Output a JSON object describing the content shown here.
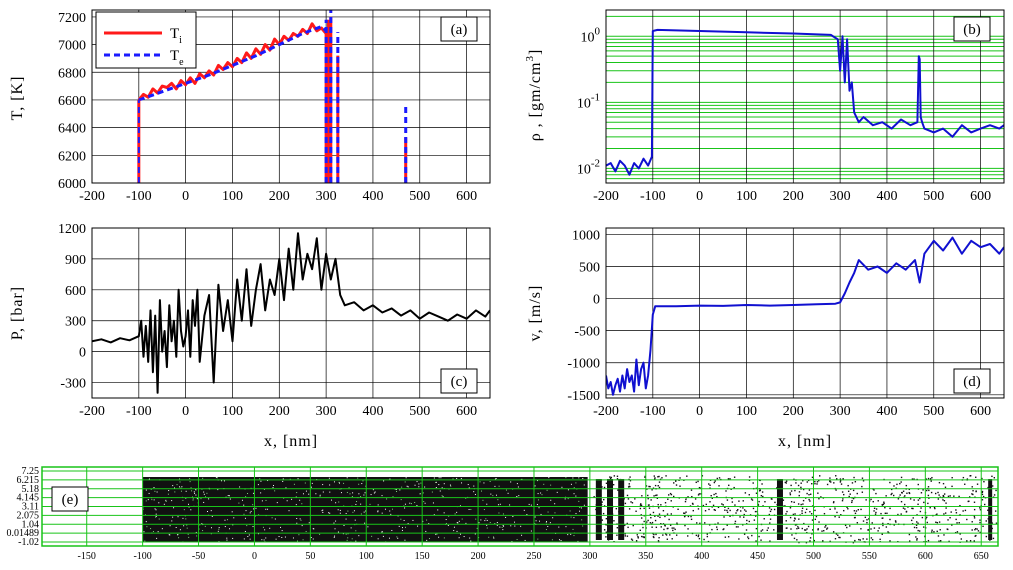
{
  "chart_data": [
    {
      "id": "a",
      "type": "line",
      "panel_label": "(a)",
      "ylabel": "T, [K]",
      "xlabel": "",
      "xlim": [
        -200,
        650
      ],
      "ylim": [
        6000,
        7250
      ],
      "xticks": [
        -200,
        -100,
        0,
        100,
        200,
        300,
        400,
        500,
        600
      ],
      "yticks": [
        6000,
        6200,
        6400,
        6600,
        6800,
        7000,
        7200
      ],
      "grid": true,
      "legend_position": "top-left",
      "series": [
        {
          "name": "Ti",
          "legend_main": "T",
          "legend_sub": "i",
          "color": "#ff1a1a",
          "style": "solid",
          "x": [
            -100,
            -90,
            -80,
            -70,
            -60,
            -50,
            -40,
            -30,
            -20,
            -10,
            0,
            10,
            20,
            30,
            40,
            50,
            60,
            70,
            80,
            90,
            100,
            110,
            120,
            130,
            140,
            150,
            160,
            170,
            180,
            190,
            200,
            210,
            220,
            230,
            240,
            250,
            260,
            270,
            280,
            290,
            300
          ],
          "y": [
            6600,
            6640,
            6620,
            6680,
            6650,
            6700,
            6690,
            6720,
            6680,
            6740,
            6710,
            6760,
            6720,
            6790,
            6760,
            6810,
            6780,
            6850,
            6820,
            6870,
            6840,
            6900,
            6870,
            6940,
            6900,
            6970,
            6930,
            7000,
            6960,
            7040,
            7000,
            7060,
            7030,
            7080,
            7060,
            7110,
            7080,
            7150,
            7100,
            7120,
            7080
          ],
          "spikes": [
            {
              "x": 300,
              "y": 7100
            },
            {
              "x": 305,
              "y": 7180
            },
            {
              "x": 310,
              "y": 7200
            },
            {
              "x": 325,
              "y": 6920
            },
            {
              "x": 470,
              "y": 6330
            }
          ]
        },
        {
          "name": "Te",
          "legend_main": "T",
          "legend_sub": "e",
          "color": "#1a1aff",
          "style": "dashed",
          "x": [
            -100,
            -50,
            0,
            50,
            100,
            150,
            200,
            250,
            290,
            300
          ],
          "y": [
            6600,
            6660,
            6720,
            6780,
            6850,
            6920,
            7000,
            7080,
            7130,
            7100
          ],
          "spikes": [
            {
              "x": 300,
              "y": 7180
            },
            {
              "x": 310,
              "y": 7250
            },
            {
              "x": 325,
              "y": 7090
            },
            {
              "x": 470,
              "y": 6560
            }
          ]
        }
      ]
    },
    {
      "id": "b",
      "type": "line",
      "panel_label": "(b)",
      "ylabel": "ρ , [gm/cm",
      "ylabel_sup": "3",
      "ylabel_close": "]",
      "xlabel": "",
      "log_scale_y": true,
      "xlim": [
        -200,
        650
      ],
      "ylim": [
        0.006,
        2.5
      ],
      "xticks": [
        -200,
        -100,
        0,
        100,
        200,
        300,
        400,
        500,
        600
      ],
      "yticks": [
        {
          "value": 1,
          "base": "10",
          "exp": "0"
        },
        {
          "value": 0.1,
          "base": "10",
          "exp": "-1"
        },
        {
          "value": 0.01,
          "base": "10",
          "exp": "-2"
        }
      ],
      "grid": "green minor grid",
      "series": [
        {
          "name": "",
          "color": "#1010d0",
          "style": "solid",
          "x": [
            -200,
            -190,
            -180,
            -170,
            -160,
            -150,
            -140,
            -130,
            -120,
            -110,
            -102,
            -100,
            -90,
            0,
            100,
            200,
            280,
            295,
            300,
            305,
            310,
            315,
            320,
            325,
            330,
            340,
            350,
            370,
            390,
            410,
            430,
            450,
            465,
            468,
            470,
            472,
            475,
            480,
            500,
            520,
            540,
            560,
            580,
            600,
            620,
            640,
            650
          ],
          "y": [
            0.011,
            0.012,
            0.009,
            0.013,
            0.011,
            0.008,
            0.012,
            0.01,
            0.014,
            0.011,
            0.015,
            1.2,
            1.25,
            1.2,
            1.15,
            1.1,
            1.05,
            0.9,
            0.3,
            1.0,
            0.2,
            0.9,
            0.15,
            0.2,
            0.07,
            0.05,
            0.06,
            0.045,
            0.05,
            0.04,
            0.055,
            0.045,
            0.05,
            0.5,
            0.45,
            0.06,
            0.05,
            0.04,
            0.035,
            0.04,
            0.03,
            0.045,
            0.035,
            0.04,
            0.045,
            0.04,
            0.045
          ]
        }
      ]
    },
    {
      "id": "c",
      "type": "line",
      "panel_label": "(c)",
      "ylabel": "P, [bar]",
      "xlabel": "x, [nm]",
      "xlim": [
        -200,
        650
      ],
      "ylim": [
        -450,
        1200
      ],
      "xticks": [
        -200,
        -100,
        0,
        100,
        200,
        300,
        400,
        500,
        600
      ],
      "yticks": [
        -300,
        0,
        300,
        600,
        900,
        1200
      ],
      "grid": true,
      "series": [
        {
          "name": "",
          "color": "#000000",
          "style": "solid",
          "x": [
            -200,
            -180,
            -160,
            -140,
            -120,
            -100,
            -95,
            -90,
            -85,
            -80,
            -75,
            -70,
            -65,
            -60,
            -55,
            -50,
            -45,
            -40,
            -35,
            -30,
            -25,
            -20,
            -15,
            -10,
            -5,
            0,
            5,
            10,
            15,
            20,
            25,
            30,
            40,
            50,
            60,
            70,
            80,
            90,
            100,
            110,
            120,
            130,
            140,
            150,
            160,
            170,
            180,
            190,
            200,
            210,
            220,
            230,
            240,
            250,
            260,
            270,
            280,
            290,
            300,
            310,
            320,
            330,
            340,
            360,
            380,
            400,
            420,
            440,
            460,
            480,
            500,
            520,
            540,
            560,
            580,
            600,
            620,
            640,
            650
          ],
          "y": [
            100,
            120,
            90,
            130,
            110,
            150,
            300,
            -50,
            250,
            -100,
            400,
            -200,
            350,
            -400,
            500,
            0,
            200,
            -150,
            450,
            100,
            300,
            -50,
            600,
            200,
            50,
            150,
            400,
            -50,
            500,
            250,
            600,
            -100,
            350,
            550,
            -300,
            650,
            200,
            500,
            100,
            700,
            300,
            800,
            250,
            600,
            850,
            400,
            700,
            550,
            900,
            500,
            1000,
            600,
            1150,
            700,
            950,
            800,
            1100,
            600,
            950,
            700,
            900,
            550,
            450,
            480,
            400,
            450,
            380,
            420,
            350,
            400,
            320,
            380,
            340,
            300,
            360,
            320,
            400,
            340,
            400
          ]
        }
      ]
    },
    {
      "id": "d",
      "type": "line",
      "panel_label": "(d)",
      "ylabel": "v, [m/s]",
      "xlabel": "x, [nm]",
      "xlim": [
        -200,
        650
      ],
      "ylim": [
        -1550,
        1100
      ],
      "xticks": [
        -200,
        -100,
        0,
        100,
        200,
        300,
        400,
        500,
        600
      ],
      "yticks": [
        -1500,
        -1000,
        -500,
        0,
        500,
        1000
      ],
      "grid": true,
      "series": [
        {
          "name": "",
          "color": "#1010d0",
          "style": "solid",
          "x": [
            -200,
            -195,
            -190,
            -185,
            -180,
            -175,
            -170,
            -165,
            -160,
            -155,
            -150,
            -145,
            -140,
            -135,
            -130,
            -125,
            -120,
            -115,
            -110,
            -105,
            -100,
            -95,
            -50,
            0,
            50,
            100,
            150,
            200,
            250,
            290,
            300,
            310,
            320,
            330,
            340,
            360,
            380,
            400,
            420,
            440,
            460,
            470,
            480,
            500,
            520,
            540,
            560,
            580,
            600,
            620,
            640,
            650
          ],
          "y": [
            -1200,
            -1400,
            -1300,
            -1500,
            -1350,
            -1250,
            -1450,
            -1200,
            -1400,
            -1100,
            -1300,
            -1200,
            -1450,
            -950,
            -1350,
            -1100,
            -1000,
            -1400,
            -1200,
            -800,
            -250,
            -120,
            -120,
            -110,
            -115,
            -100,
            -110,
            -100,
            -90,
            -80,
            -60,
            80,
            250,
            400,
            600,
            450,
            500,
            400,
            550,
            450,
            600,
            250,
            700,
            900,
            750,
            950,
            700,
            900,
            800,
            850,
            700,
            800
          ]
        }
      ]
    },
    {
      "id": "e",
      "type": "scatter",
      "panel_label": "(e)",
      "xlim": [
        -190,
        665
      ],
      "xticks": [
        -150,
        -100,
        -50,
        0,
        50,
        100,
        150,
        200,
        250,
        300,
        350,
        400,
        450,
        500,
        550,
        600,
        650
      ],
      "ytick_labels": [
        "7.25",
        "6.215",
        "5.18",
        "4.145",
        "3.11",
        "2.075",
        "1.04",
        "0.01489",
        "-1.02"
      ],
      "dense_region": [
        -100,
        298
      ],
      "dense_bands": [
        308,
        318,
        328,
        470
      ],
      "grid": "green"
    }
  ]
}
